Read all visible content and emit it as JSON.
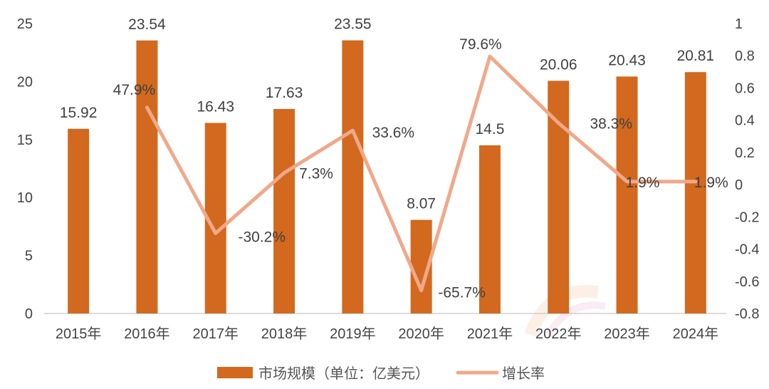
{
  "chart_data": {
    "type": "bar",
    "categories": [
      "2015年",
      "2016年",
      "2017年",
      "2018年",
      "2019年",
      "2020年",
      "2021年",
      "2022年",
      "2023年",
      "2024年"
    ],
    "series": [
      {
        "name": "市场规模（单位：亿美元）",
        "type": "bar",
        "axis": "left",
        "color": "#D2691E",
        "values": [
          15.92,
          23.54,
          16.43,
          17.63,
          23.55,
          8.07,
          14.5,
          20.06,
          20.43,
          20.81
        ],
        "labels": [
          "15.92",
          "23.54",
          "16.43",
          "17.63",
          "23.55",
          "8.07",
          "14.5",
          "20.06",
          "20.43",
          "20.81"
        ]
      },
      {
        "name": "增长率",
        "type": "line",
        "axis": "right",
        "color": "#F0A88A",
        "values": [
          null,
          0.479,
          -0.302,
          0.073,
          0.336,
          -0.657,
          0.796,
          0.383,
          0.019,
          0.019
        ],
        "labels": [
          null,
          "47.9%",
          "-30.2%",
          "7.3%",
          "33.6%",
          "-65.7%",
          "79.6%",
          "38.3%",
          "1.9%",
          "1.9%"
        ]
      }
    ],
    "ylim": [
      0,
      25
    ],
    "yticks": [
      "0",
      "5",
      "10",
      "15",
      "20",
      "25"
    ],
    "y2lim": [
      -0.8,
      1
    ],
    "y2ticks": [
      "-0.8",
      "-0.6",
      "-0.4",
      "-0.2",
      "0",
      "0.2",
      "0.4",
      "0.6",
      "0.8",
      "1"
    ],
    "grid": false,
    "legend_position": "bottom"
  }
}
